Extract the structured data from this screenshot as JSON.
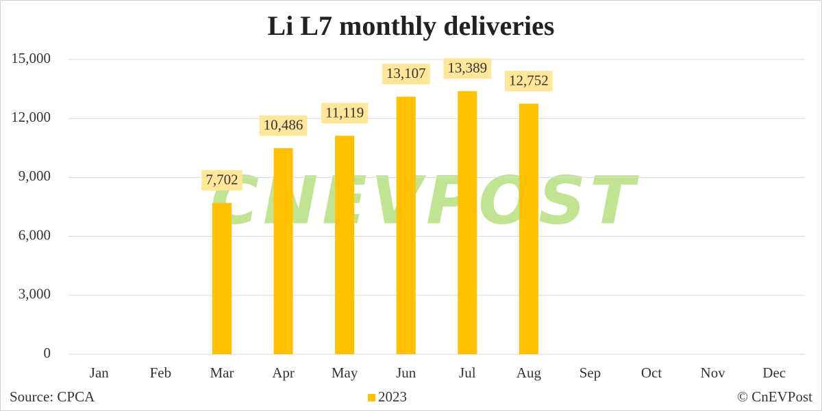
{
  "chart_data": {
    "type": "bar",
    "title": "Li L7 monthly deliveries",
    "categories": [
      "Jan",
      "Feb",
      "Mar",
      "Apr",
      "May",
      "Jun",
      "Jul",
      "Aug",
      "Sep",
      "Oct",
      "Nov",
      "Dec"
    ],
    "series": [
      {
        "name": "2023",
        "color": "#FFC000",
        "values": [
          null,
          null,
          7702,
          10486,
          11119,
          13107,
          13389,
          12752,
          null,
          null,
          null,
          null
        ],
        "value_labels": [
          null,
          null,
          "7,702",
          "10,486",
          "11,119",
          "13,107",
          "13,389",
          "12,752",
          null,
          null,
          null,
          null
        ]
      }
    ],
    "ylim": [
      0,
      15000
    ],
    "yticks": [
      0,
      {
        "value": 3000,
        "label": "3,000"
      },
      {
        "value": 6000,
        "label": "6,000"
      },
      {
        "value": 9000,
        "label": "9,000"
      },
      {
        "value": 12000,
        "label": "12,000"
      },
      {
        "value": 15000,
        "label": "15,000"
      }
    ],
    "grid": true,
    "legend": "bottom",
    "source": "Source: CPCA",
    "copyright": "© CnEVPost",
    "watermark": "CNEVPOST"
  }
}
